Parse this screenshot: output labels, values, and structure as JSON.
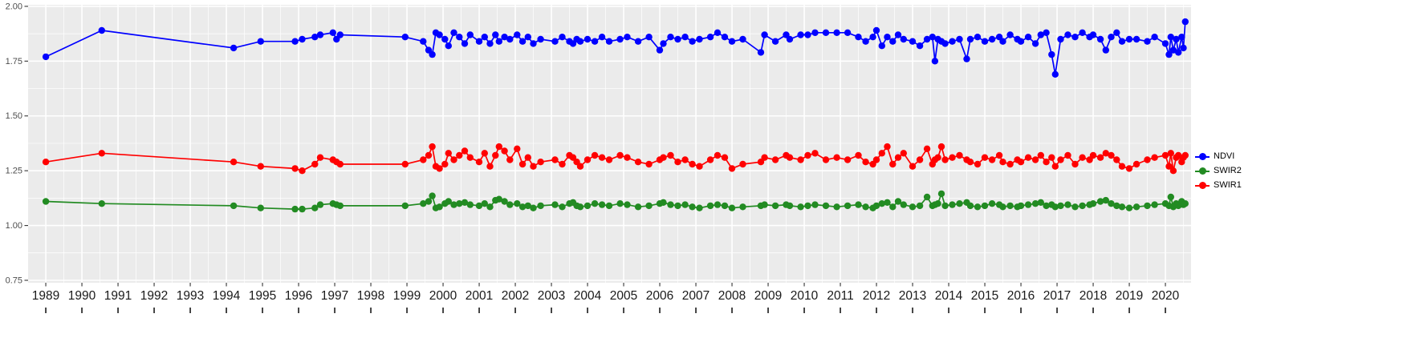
{
  "figure": {
    "background": "#ffffff",
    "panel_background": "#ebebeb",
    "grid_color": "#ffffff",
    "axis_text_color": "#4d4d4d",
    "x_label_color": "#1a1a1a",
    "tick_color": "#333333"
  },
  "legend": {
    "items": [
      {
        "label": "NDVI",
        "color": "#0000ff"
      },
      {
        "label": "SWIR2",
        "color": "#228b22"
      },
      {
        "label": "SWIR1",
        "color": "#ff0000"
      }
    ]
  },
  "chart_data": {
    "type": "line",
    "title": "",
    "xlabel": "",
    "ylabel": "",
    "grid": true,
    "legend_position": "right",
    "xlim": [
      1988.51,
      2020.71
    ],
    "ylim": [
      0.739,
      2.007
    ],
    "x_ticks": [
      1989,
      1990,
      1991,
      1992,
      1993,
      1994,
      1995,
      1996,
      1997,
      1998,
      1999,
      2000,
      2001,
      2002,
      2003,
      2004,
      2005,
      2006,
      2007,
      2008,
      2009,
      2010,
      2011,
      2012,
      2013,
      2014,
      2015,
      2016,
      2017,
      2018,
      2019,
      2020
    ],
    "y_ticks": [
      0.75,
      1.0,
      1.25,
      1.5,
      1.75,
      2.0
    ],
    "y_tick_labels": [
      "0.75",
      "1.00",
      "1.25",
      "1.50",
      "1.75",
      "2.00"
    ],
    "x": [
      1989.0,
      1990.55,
      1994.2,
      1994.95,
      1995.9,
      1996.1,
      1996.45,
      1996.6,
      1996.95,
      1997.05,
      1997.15,
      1998.95,
      1999.45,
      1999.6,
      1999.7,
      1999.8,
      1999.9,
      2000.05,
      2000.15,
      2000.3,
      2000.45,
      2000.6,
      2000.75,
      2001.0,
      2001.15,
      2001.3,
      2001.45,
      2001.55,
      2001.7,
      2001.85,
      2002.05,
      2002.2,
      2002.35,
      2002.5,
      2002.7,
      2003.1,
      2003.3,
      2003.5,
      2003.6,
      2003.7,
      2003.8,
      2004.0,
      2004.2,
      2004.4,
      2004.6,
      2004.9,
      2005.1,
      2005.4,
      2005.7,
      2006.0,
      2006.1,
      2006.3,
      2006.5,
      2006.7,
      2006.9,
      2007.1,
      2007.4,
      2007.6,
      2007.8,
      2008.0,
      2008.3,
      2008.8,
      2008.9,
      2009.2,
      2009.5,
      2009.6,
      2009.9,
      2010.1,
      2010.3,
      2010.6,
      2010.9,
      2011.2,
      2011.5,
      2011.7,
      2011.9,
      2012.0,
      2012.15,
      2012.3,
      2012.45,
      2012.6,
      2012.75,
      2013.0,
      2013.2,
      2013.4,
      2013.55,
      2013.62,
      2013.7,
      2013.8,
      2013.9,
      2014.1,
      2014.3,
      2014.5,
      2014.6,
      2014.8,
      2015.0,
      2015.2,
      2015.4,
      2015.5,
      2015.7,
      2015.9,
      2016.0,
      2016.2,
      2016.4,
      2016.55,
      2016.7,
      2016.85,
      2016.95,
      2017.1,
      2017.3,
      2017.5,
      2017.7,
      2017.9,
      2018.0,
      2018.2,
      2018.35,
      2018.5,
      2018.65,
      2018.8,
      2019.0,
      2019.2,
      2019.5,
      2019.7,
      2020.0,
      2020.1,
      2020.15,
      2020.22,
      2020.3,
      2020.36,
      2020.45,
      2020.5,
      2020.55
    ],
    "series": [
      {
        "name": "NDVI",
        "color": "#0000ff",
        "values": [
          1.77,
          1.89,
          1.81,
          1.84,
          1.84,
          1.85,
          1.86,
          1.87,
          1.88,
          1.85,
          1.87,
          1.86,
          1.84,
          1.8,
          1.78,
          1.88,
          1.87,
          1.85,
          1.82,
          1.88,
          1.86,
          1.83,
          1.87,
          1.84,
          1.86,
          1.83,
          1.87,
          1.84,
          1.86,
          1.85,
          1.87,
          1.84,
          1.86,
          1.83,
          1.85,
          1.84,
          1.86,
          1.84,
          1.83,
          1.85,
          1.84,
          1.85,
          1.84,
          1.86,
          1.84,
          1.85,
          1.86,
          1.84,
          1.86,
          1.8,
          1.83,
          1.86,
          1.85,
          1.86,
          1.84,
          1.85,
          1.86,
          1.88,
          1.86,
          1.84,
          1.85,
          1.79,
          1.87,
          1.84,
          1.87,
          1.85,
          1.87,
          1.87,
          1.88,
          1.88,
          1.88,
          1.88,
          1.86,
          1.84,
          1.86,
          1.89,
          1.82,
          1.86,
          1.84,
          1.87,
          1.85,
          1.84,
          1.82,
          1.85,
          1.86,
          1.75,
          1.85,
          1.84,
          1.83,
          1.84,
          1.85,
          1.76,
          1.85,
          1.86,
          1.84,
          1.85,
          1.86,
          1.84,
          1.87,
          1.85,
          1.84,
          1.86,
          1.83,
          1.87,
          1.88,
          1.78,
          1.69,
          1.85,
          1.87,
          1.86,
          1.88,
          1.86,
          1.87,
          1.85,
          1.8,
          1.86,
          1.88,
          1.84,
          1.85,
          1.85,
          1.84,
          1.86,
          1.83,
          1.78,
          1.86,
          1.8,
          1.85,
          1.79,
          1.86,
          1.81,
          1.93
        ]
      },
      {
        "name": "SWIR2",
        "color": "#228b22",
        "values": [
          1.11,
          1.1,
          1.09,
          1.08,
          1.075,
          1.075,
          1.08,
          1.095,
          1.1,
          1.095,
          1.09,
          1.09,
          1.1,
          1.11,
          1.135,
          1.08,
          1.085,
          1.1,
          1.11,
          1.095,
          1.1,
          1.105,
          1.095,
          1.09,
          1.1,
          1.085,
          1.115,
          1.12,
          1.11,
          1.095,
          1.1,
          1.085,
          1.09,
          1.08,
          1.09,
          1.095,
          1.085,
          1.1,
          1.105,
          1.09,
          1.085,
          1.09,
          1.1,
          1.095,
          1.09,
          1.1,
          1.095,
          1.085,
          1.09,
          1.1,
          1.105,
          1.095,
          1.09,
          1.095,
          1.085,
          1.08,
          1.09,
          1.095,
          1.09,
          1.08,
          1.085,
          1.09,
          1.095,
          1.09,
          1.095,
          1.09,
          1.085,
          1.09,
          1.095,
          1.09,
          1.085,
          1.09,
          1.095,
          1.085,
          1.08,
          1.09,
          1.1,
          1.105,
          1.085,
          1.11,
          1.095,
          1.085,
          1.09,
          1.13,
          1.09,
          1.095,
          1.1,
          1.145,
          1.09,
          1.095,
          1.1,
          1.105,
          1.09,
          1.085,
          1.09,
          1.1,
          1.095,
          1.085,
          1.09,
          1.085,
          1.09,
          1.095,
          1.1,
          1.105,
          1.09,
          1.095,
          1.085,
          1.09,
          1.095,
          1.085,
          1.09,
          1.095,
          1.1,
          1.11,
          1.115,
          1.1,
          1.09,
          1.085,
          1.08,
          1.085,
          1.09,
          1.095,
          1.1,
          1.09,
          1.13,
          1.085,
          1.1,
          1.09,
          1.11,
          1.095,
          1.1
        ]
      },
      {
        "name": "SWIR1",
        "color": "#ff0000",
        "values": [
          1.29,
          1.33,
          1.29,
          1.27,
          1.26,
          1.25,
          1.28,
          1.31,
          1.3,
          1.29,
          1.28,
          1.28,
          1.3,
          1.32,
          1.36,
          1.27,
          1.26,
          1.28,
          1.33,
          1.3,
          1.32,
          1.34,
          1.31,
          1.29,
          1.33,
          1.27,
          1.32,
          1.36,
          1.34,
          1.3,
          1.35,
          1.28,
          1.31,
          1.27,
          1.29,
          1.3,
          1.28,
          1.32,
          1.31,
          1.29,
          1.27,
          1.3,
          1.32,
          1.31,
          1.3,
          1.32,
          1.31,
          1.29,
          1.28,
          1.3,
          1.31,
          1.32,
          1.29,
          1.3,
          1.28,
          1.27,
          1.3,
          1.32,
          1.31,
          1.26,
          1.28,
          1.29,
          1.31,
          1.3,
          1.32,
          1.31,
          1.3,
          1.32,
          1.33,
          1.3,
          1.31,
          1.3,
          1.32,
          1.29,
          1.28,
          1.3,
          1.33,
          1.36,
          1.28,
          1.31,
          1.33,
          1.27,
          1.3,
          1.35,
          1.28,
          1.3,
          1.31,
          1.36,
          1.3,
          1.31,
          1.32,
          1.3,
          1.29,
          1.28,
          1.31,
          1.3,
          1.32,
          1.29,
          1.28,
          1.3,
          1.29,
          1.31,
          1.3,
          1.32,
          1.29,
          1.31,
          1.27,
          1.3,
          1.32,
          1.28,
          1.31,
          1.3,
          1.32,
          1.31,
          1.33,
          1.32,
          1.3,
          1.27,
          1.26,
          1.28,
          1.3,
          1.31,
          1.32,
          1.27,
          1.33,
          1.25,
          1.31,
          1.32,
          1.29,
          1.31,
          1.32
        ]
      }
    ]
  }
}
